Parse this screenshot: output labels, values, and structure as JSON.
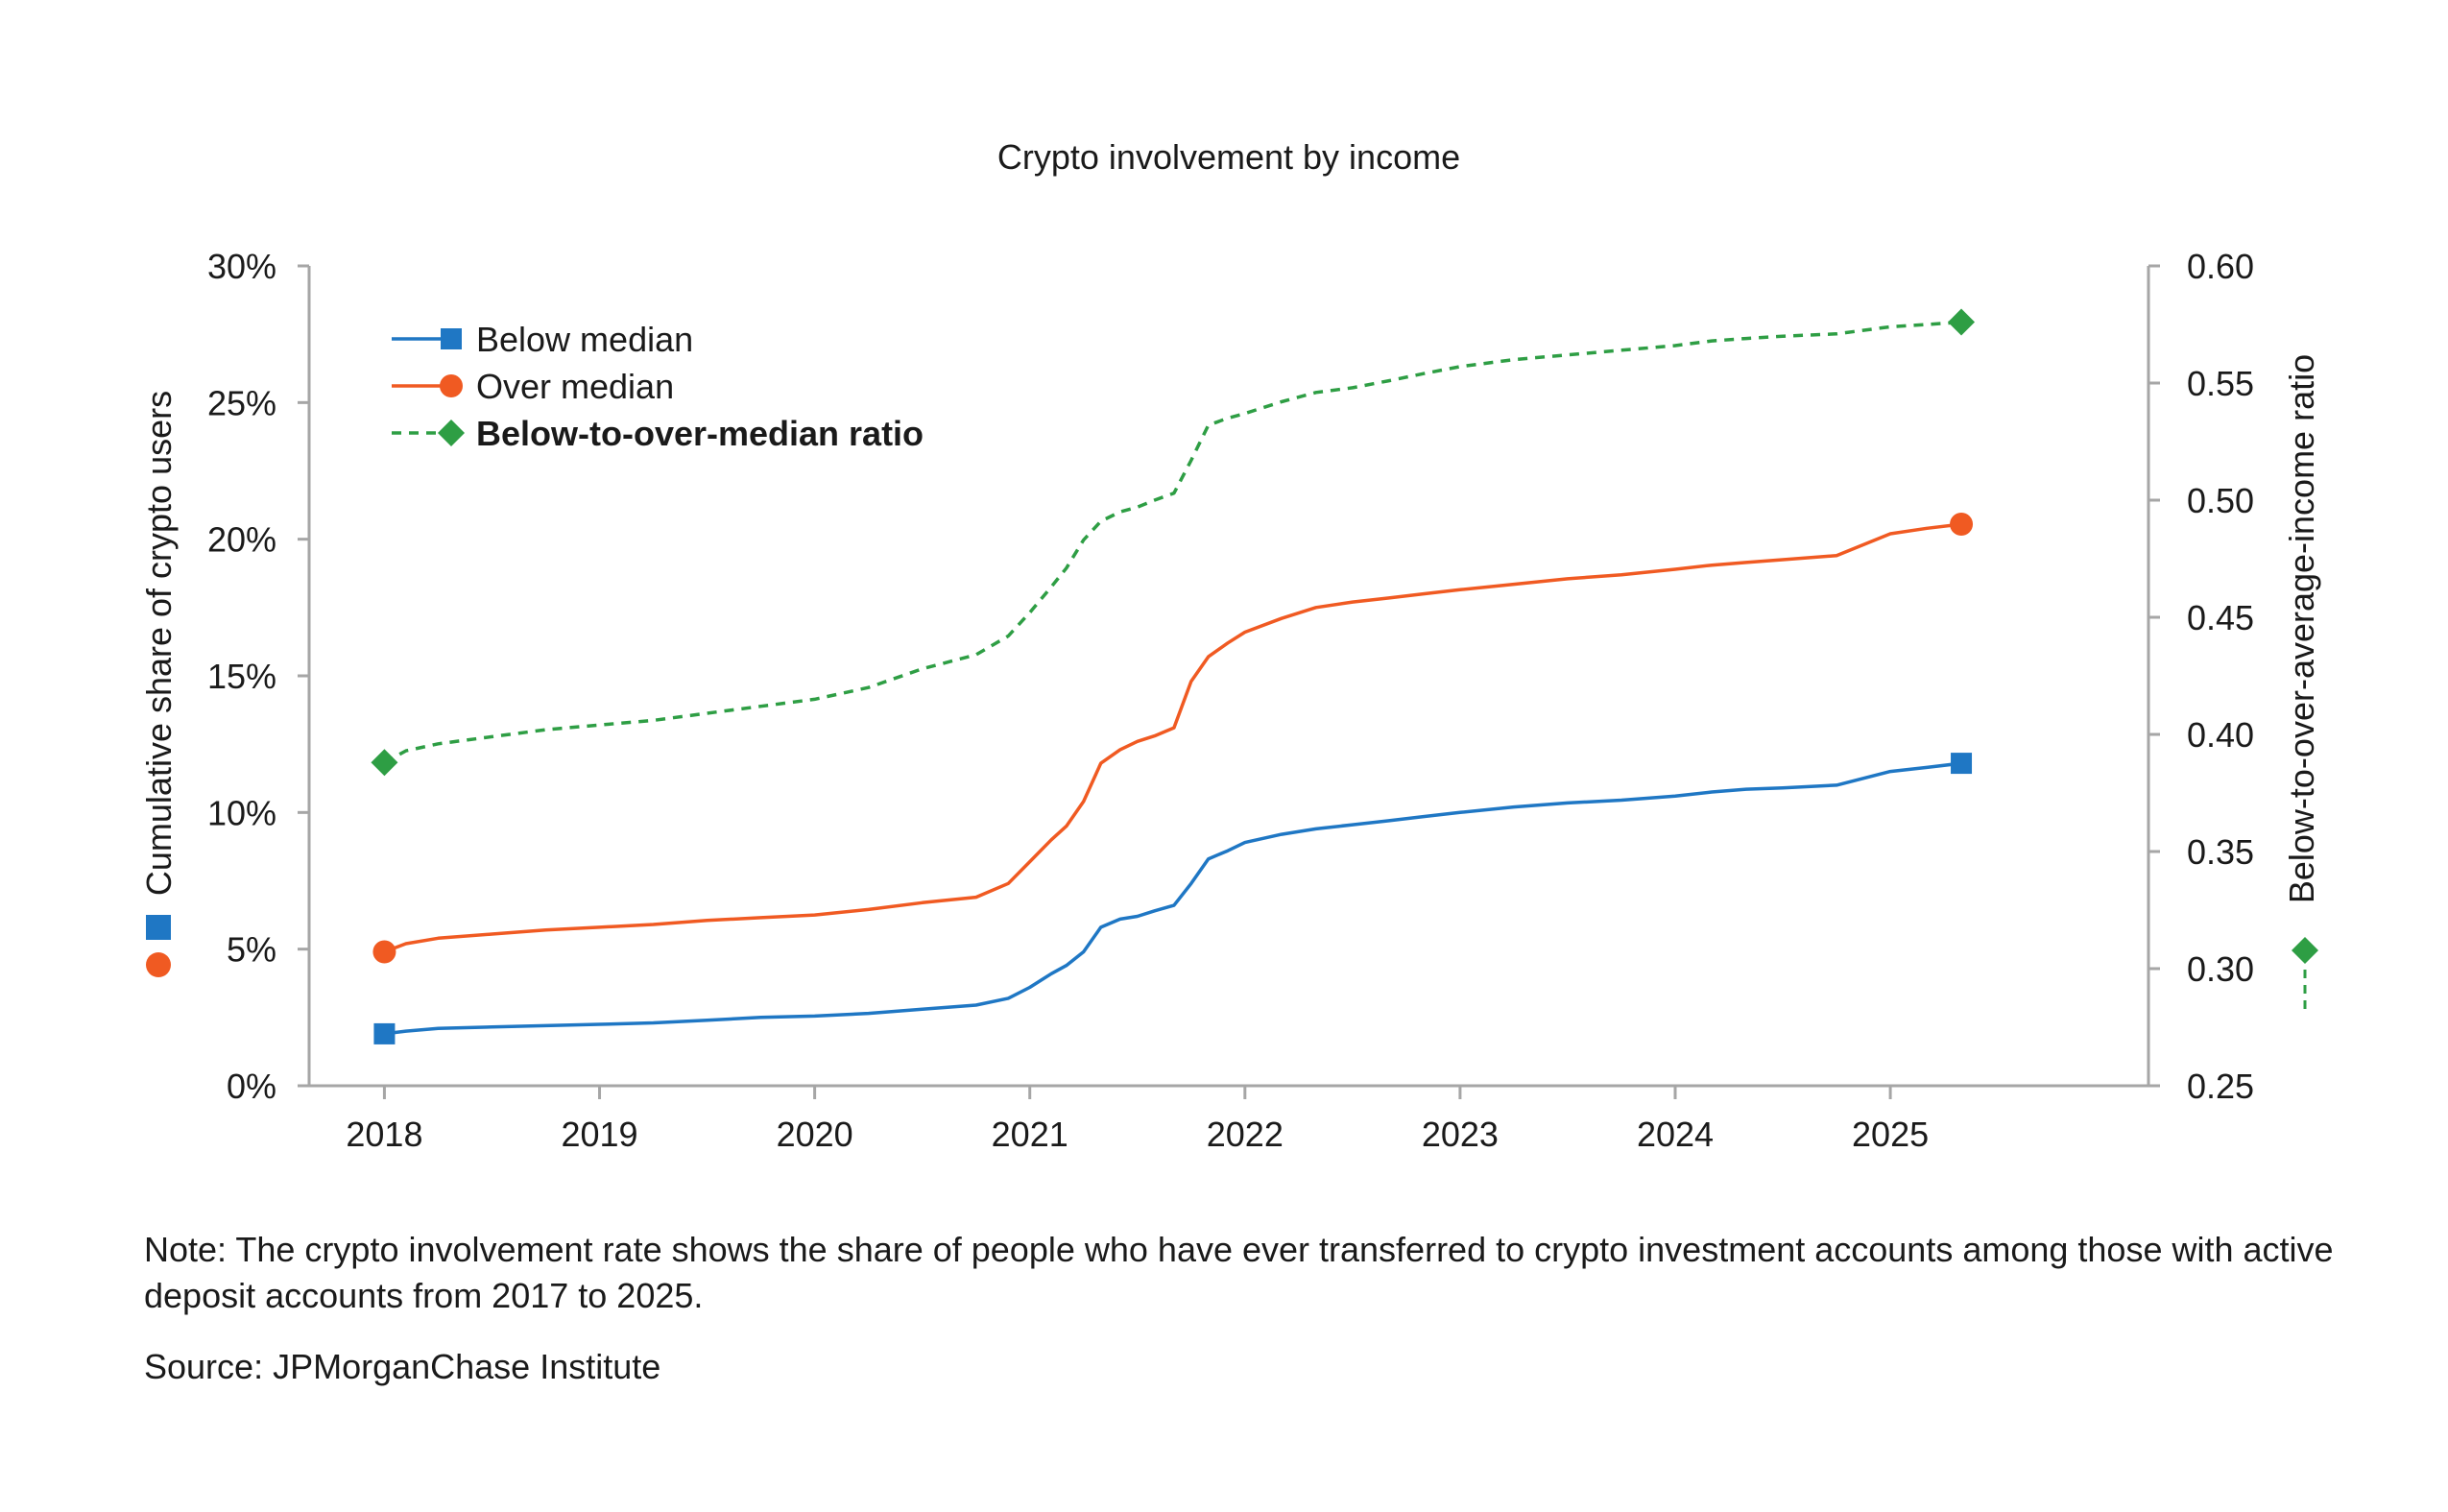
{
  "chart_data": {
    "type": "line",
    "title": "Crypto involvement by income",
    "ylabel_left": "Cumulative share of crypto users",
    "ylabel_right": "Below-to-over-average-income ratio",
    "x_ticks": [
      "2018",
      "2019",
      "2020",
      "2021",
      "2022",
      "2023",
      "2024",
      "2025"
    ],
    "y_left_ticks": [
      "0%",
      "5%",
      "10%",
      "15%",
      "20%",
      "25%",
      "30%"
    ],
    "y_right_ticks": [
      "0.25",
      "0.30",
      "0.35",
      "0.40",
      "0.45",
      "0.50",
      "0.55",
      "0.60"
    ],
    "ylim_left": [
      0,
      30
    ],
    "ylim_right": [
      0.25,
      0.6
    ],
    "xlim": [
      2017.65,
      2026.2
    ],
    "grid": false,
    "legend_position": "top-left",
    "colors": {
      "below": "#1f77c4",
      "over": "#f05a22",
      "ratio": "#2e9e44"
    },
    "series": [
      {
        "name": "Below median",
        "axis": "left",
        "marker": "square",
        "x": [
          2018.0,
          2018.1,
          2018.25,
          2018.5,
          2018.75,
          2019.0,
          2019.25,
          2019.5,
          2019.75,
          2020.0,
          2020.25,
          2020.5,
          2020.75,
          2020.9,
          2021.0,
          2021.1,
          2021.17,
          2021.25,
          2021.33,
          2021.42,
          2021.5,
          2021.58,
          2021.67,
          2021.75,
          2021.83,
          2021.92,
          2022.0,
          2022.17,
          2022.33,
          2022.5,
          2022.67,
          2022.83,
          2023.0,
          2023.25,
          2023.5,
          2023.75,
          2024.0,
          2024.17,
          2024.33,
          2024.5,
          2024.75,
          2025.0,
          2025.17,
          2025.33
        ],
        "y": [
          1.9,
          2.0,
          2.1,
          2.15,
          2.2,
          2.25,
          2.3,
          2.4,
          2.5,
          2.55,
          2.65,
          2.8,
          2.95,
          3.2,
          3.6,
          4.1,
          4.4,
          4.9,
          5.8,
          6.1,
          6.2,
          6.4,
          6.6,
          7.4,
          8.3,
          8.6,
          8.9,
          9.2,
          9.4,
          9.55,
          9.7,
          9.85,
          10.0,
          10.2,
          10.35,
          10.45,
          10.6,
          10.75,
          10.85,
          10.9,
          11.0,
          11.5,
          11.65,
          11.8
        ]
      },
      {
        "name": "Over median",
        "axis": "left",
        "marker": "circle",
        "x": [
          2018.0,
          2018.1,
          2018.25,
          2018.5,
          2018.75,
          2019.0,
          2019.25,
          2019.5,
          2019.75,
          2020.0,
          2020.25,
          2020.5,
          2020.75,
          2020.9,
          2021.0,
          2021.1,
          2021.17,
          2021.25,
          2021.33,
          2021.42,
          2021.5,
          2021.58,
          2021.67,
          2021.75,
          2021.83,
          2021.92,
          2022.0,
          2022.17,
          2022.33,
          2022.5,
          2022.67,
          2022.83,
          2023.0,
          2023.25,
          2023.5,
          2023.75,
          2024.0,
          2024.17,
          2024.33,
          2024.5,
          2024.75,
          2025.0,
          2025.17,
          2025.33
        ],
        "y": [
          4.9,
          5.2,
          5.4,
          5.55,
          5.7,
          5.8,
          5.9,
          6.05,
          6.15,
          6.25,
          6.45,
          6.7,
          6.9,
          7.4,
          8.2,
          9.0,
          9.5,
          10.4,
          11.8,
          12.3,
          12.6,
          12.8,
          13.1,
          14.8,
          15.7,
          16.2,
          16.6,
          17.1,
          17.5,
          17.7,
          17.85,
          18.0,
          18.15,
          18.35,
          18.55,
          18.7,
          18.9,
          19.05,
          19.15,
          19.25,
          19.4,
          20.2,
          20.4,
          20.55
        ]
      },
      {
        "name": "Below-to-over-median ratio",
        "axis": "right",
        "marker": "diamond",
        "dashed": true,
        "x": [
          2018.0,
          2018.1,
          2018.25,
          2018.5,
          2018.75,
          2019.0,
          2019.25,
          2019.5,
          2019.75,
          2020.0,
          2020.25,
          2020.5,
          2020.75,
          2020.9,
          2021.0,
          2021.1,
          2021.17,
          2021.25,
          2021.33,
          2021.42,
          2021.5,
          2021.58,
          2021.67,
          2021.75,
          2021.83,
          2021.92,
          2022.0,
          2022.17,
          2022.33,
          2022.5,
          2022.67,
          2022.83,
          2023.0,
          2023.25,
          2023.5,
          2023.75,
          2024.0,
          2024.17,
          2024.33,
          2024.5,
          2024.75,
          2025.0,
          2025.17,
          2025.33
        ],
        "y": [
          0.388,
          0.393,
          0.396,
          0.399,
          0.402,
          0.404,
          0.406,
          0.409,
          0.412,
          0.415,
          0.42,
          0.428,
          0.434,
          0.442,
          0.452,
          0.463,
          0.471,
          0.483,
          0.491,
          0.495,
          0.497,
          0.5,
          0.503,
          0.517,
          0.532,
          0.535,
          0.537,
          0.542,
          0.546,
          0.548,
          0.551,
          0.554,
          0.557,
          0.56,
          0.562,
          0.564,
          0.566,
          0.568,
          0.569,
          0.57,
          0.571,
          0.574,
          0.575,
          0.576
        ]
      }
    ]
  },
  "note": "Note: The crypto involvement rate shows the share of people who have ever transferred to crypto investment accounts among those with active deposit accounts from 2017 to  2025.",
  "source": "Source: JPMorganChase Institute"
}
